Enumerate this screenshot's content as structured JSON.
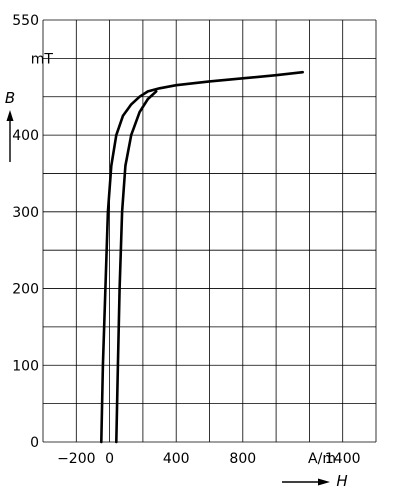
{
  "chart_data": {
    "type": "line",
    "title": "",
    "xlabel": "H",
    "ylabel": "B",
    "x_unit": "A/m",
    "y_unit": "mT",
    "xlim": [
      -400,
      1600
    ],
    "ylim": [
      0,
      550
    ],
    "grid": true,
    "x_ticks": [
      {
        "value": -200,
        "label": "−200"
      },
      {
        "value": 0,
        "label": "0"
      },
      {
        "value": 400,
        "label": "400"
      },
      {
        "value": 800,
        "label": "800"
      },
      {
        "value": 1400,
        "label": "1400"
      }
    ],
    "y_ticks": [
      {
        "value": 0,
        "label": "0"
      },
      {
        "value": 100,
        "label": "100"
      },
      {
        "value": 200,
        "label": "200"
      },
      {
        "value": 300,
        "label": "300"
      },
      {
        "value": 400,
        "label": "400"
      },
      {
        "value": 550,
        "label": "550"
      }
    ],
    "series": [
      {
        "x": [
          -50,
          -40,
          -25,
          -10,
          10,
          40,
          80,
          130,
          180,
          230,
          300,
          400,
          600,
          800,
          1000,
          1160
        ],
        "y": [
          0,
          100,
          200,
          300,
          360,
          400,
          425,
          440,
          450,
          457,
          461,
          465,
          470,
          474,
          478,
          482
        ]
      },
      {
        "x": [
          40,
          50,
          60,
          75,
          95,
          130,
          180,
          230,
          280
        ],
        "y": [
          0,
          100,
          200,
          300,
          360,
          400,
          430,
          447,
          457
        ]
      }
    ],
    "line_color": "#000000"
  }
}
